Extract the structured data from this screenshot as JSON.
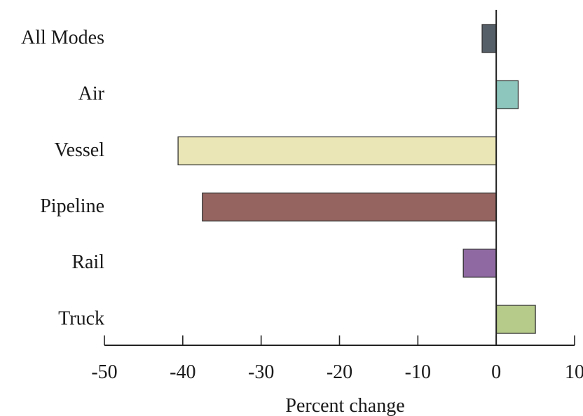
{
  "chart_data": {
    "type": "bar",
    "orientation": "horizontal",
    "categories": [
      "All Modes",
      "Air",
      "Vessel",
      "Pipeline",
      "Rail",
      "Truck"
    ],
    "values": [
      -1.8,
      2.8,
      -40.6,
      -37.5,
      -4.2,
      5.0
    ],
    "colors": [
      "#555f68",
      "#8dc6bc",
      "#ebe6b5",
      "#956460",
      "#8f6aa2",
      "#b6ca8a"
    ],
    "xlabel": "Percent change",
    "ylabel": "",
    "title": "",
    "xlim": [
      -50,
      10
    ],
    "x_ticks": [
      -50,
      -40,
      -30,
      -20,
      -10,
      0,
      10
    ],
    "grid": false,
    "legend": "none"
  }
}
